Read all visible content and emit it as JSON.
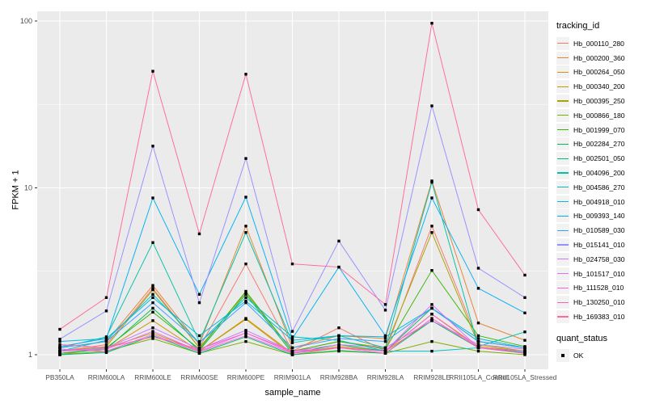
{
  "chart_data": {
    "type": "line",
    "xlabel": "sample_name",
    "ylabel": "FPKM + 1",
    "yscale": "log10",
    "ylim": [
      0.82,
      115
    ],
    "yticks": [
      1,
      10,
      100
    ],
    "grid": true,
    "panel_bg": "#EBEBEB",
    "grid_color": "#FFFFFF",
    "tick_label_color": "#4D4D4D",
    "point_color": "#000000",
    "point_shape": "square",
    "legend_position": "right",
    "categories": [
      "PB350LA",
      "RRIM600LA",
      "RRIM600LE",
      "RRIM600SE",
      "RRIM600PE",
      "RRIM901LA",
      "RRIM928BA",
      "RRIM928LA",
      "RRIM928LE",
      "RRII105LA_Control",
      "RRII105LA_Stressed"
    ],
    "series": [
      {
        "name": "Hb_000110_280",
        "color": "#F8766D",
        "values": [
          1.05,
          1.15,
          2.5,
          1.1,
          3.5,
          1.05,
          1.45,
          1.05,
          5.9,
          1.2,
          1.1
        ]
      },
      {
        "name": "Hb_000200_360",
        "color": "#EA8331",
        "values": [
          1.1,
          1.2,
          2.6,
          1.15,
          5.9,
          1.1,
          1.3,
          1.25,
          11.0,
          1.55,
          1.22
        ]
      },
      {
        "name": "Hb_000264_050",
        "color": "#D89000",
        "values": [
          1.02,
          1.08,
          1.6,
          1.05,
          1.65,
          1.02,
          1.12,
          1.05,
          1.75,
          1.12,
          1.05
        ]
      },
      {
        "name": "Hb_000340_200",
        "color": "#C09B00",
        "values": [
          1.0,
          1.1,
          1.35,
          1.05,
          1.63,
          1.0,
          1.1,
          1.05,
          1.6,
          1.1,
          1.02
        ]
      },
      {
        "name": "Hb_000395_250",
        "color": "#A3A500",
        "values": [
          1.05,
          1.12,
          2.45,
          1.1,
          2.35,
          1.05,
          1.2,
          1.1,
          5.4,
          1.15,
          1.05
        ]
      },
      {
        "name": "Hb_000866_180",
        "color": "#7CAE00",
        "values": [
          1.0,
          1.05,
          1.25,
          1.02,
          1.2,
          1.0,
          1.05,
          1.02,
          1.2,
          1.05,
          1.0
        ]
      },
      {
        "name": "Hb_001999_070",
        "color": "#39B600",
        "values": [
          1.05,
          1.1,
          1.8,
          1.08,
          2.4,
          1.05,
          1.2,
          1.08,
          3.2,
          1.3,
          1.12
        ]
      },
      {
        "name": "Hb_002284_270",
        "color": "#00BB4E",
        "values": [
          1.02,
          1.08,
          1.9,
          1.06,
          2.3,
          1.02,
          1.15,
          1.05,
          1.9,
          1.2,
          1.1
        ]
      },
      {
        "name": "Hb_002501_050",
        "color": "#00BF7D",
        "values": [
          1.0,
          1.03,
          1.3,
          1.02,
          1.28,
          1.0,
          1.06,
          1.02,
          1.6,
          1.1,
          1.03
        ]
      },
      {
        "name": "Hb_004096_200",
        "color": "#00C1A3",
        "values": [
          1.1,
          1.28,
          4.7,
          1.2,
          5.4,
          1.18,
          1.3,
          1.1,
          10.8,
          1.12,
          1.37
        ]
      },
      {
        "name": "Hb_004586_270",
        "color": "#00BFC4",
        "values": [
          1.05,
          1.22,
          2.3,
          1.18,
          2.2,
          1.28,
          1.22,
          1.05,
          1.05,
          1.1,
          1.05
        ]
      },
      {
        "name": "Hb_004918_010",
        "color": "#00BAE0",
        "values": [
          1.2,
          1.25,
          2.2,
          1.3,
          2.1,
          1.22,
          1.3,
          1.28,
          1.9,
          1.25,
          1.1
        ]
      },
      {
        "name": "Hb_009393_140",
        "color": "#00B0F6",
        "values": [
          1.12,
          1.25,
          8.7,
          2.3,
          8.8,
          1.25,
          3.35,
          1.3,
          8.7,
          2.5,
          1.78
        ]
      },
      {
        "name": "Hb_010589_030",
        "color": "#35A2FF",
        "values": [
          1.1,
          1.2,
          2.05,
          1.18,
          2.05,
          1.1,
          1.25,
          1.2,
          1.9,
          1.2,
          1.1
        ]
      },
      {
        "name": "Hb_015141_010",
        "color": "#9590FF",
        "values": [
          1.24,
          1.83,
          17.8,
          2.05,
          15.0,
          1.38,
          4.8,
          1.85,
          31.0,
          3.3,
          2.2
        ]
      },
      {
        "name": "Hb_024758_030",
        "color": "#C77CFF",
        "values": [
          1.05,
          1.1,
          1.45,
          1.08,
          1.4,
          1.05,
          1.15,
          1.1,
          1.6,
          1.15,
          1.08
        ]
      },
      {
        "name": "Hb_101517_010",
        "color": "#E76BF3",
        "values": [
          1.05,
          1.08,
          1.38,
          1.05,
          1.35,
          1.03,
          1.1,
          1.05,
          2.0,
          1.1,
          1.05
        ]
      },
      {
        "name": "Hb_111528_010",
        "color": "#FA62DB",
        "values": [
          1.08,
          1.05,
          1.32,
          1.04,
          1.3,
          1.02,
          1.1,
          1.05,
          1.75,
          1.1,
          1.05
        ]
      },
      {
        "name": "Hb_130250_010",
        "color": "#FF62BC",
        "values": [
          1.15,
          1.1,
          1.28,
          1.08,
          1.35,
          1.05,
          1.1,
          1.02,
          1.65,
          1.1,
          1.02
        ]
      },
      {
        "name": "Hb_169383_010",
        "color": "#FF6A98",
        "values": [
          1.42,
          2.2,
          50.0,
          5.3,
          48.0,
          3.5,
          3.35,
          2.0,
          97.0,
          7.4,
          3.0
        ]
      }
    ],
    "legend": {
      "tracking_id_title": "tracking_id",
      "quant_status_title": "quant_status",
      "quant_status_items": [
        {
          "label": "OK",
          "marker": "black-square"
        }
      ]
    }
  }
}
